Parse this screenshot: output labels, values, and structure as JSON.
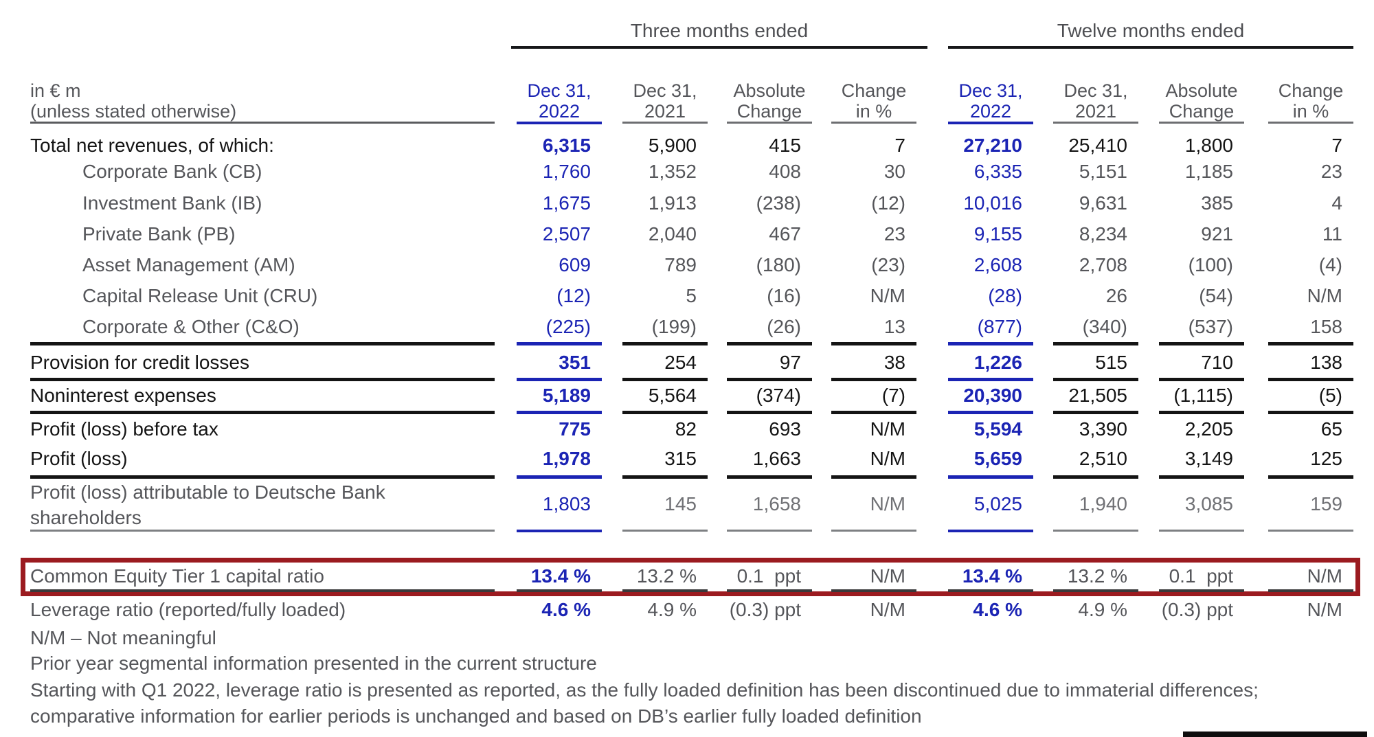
{
  "unit_label": {
    "line1": "in € m",
    "line2": "(unless stated otherwise)"
  },
  "groups": [
    {
      "title": "Three months ended",
      "columns": [
        {
          "line1": "Dec 31,",
          "line2": "2022"
        },
        {
          "line1": "Dec 31,",
          "line2": "2021"
        },
        {
          "line1": "Absolute",
          "line2": "Change"
        },
        {
          "line1": "Change",
          "line2": "in %"
        }
      ]
    },
    {
      "title": "Twelve months ended",
      "columns": [
        {
          "line1": "Dec 31,",
          "line2": "2022"
        },
        {
          "line1": "Dec 31,",
          "line2": "2021"
        },
        {
          "line1": "Absolute",
          "line2": "Change"
        },
        {
          "line1": "Change",
          "line2": "in %"
        }
      ]
    }
  ],
  "rows": [
    {
      "label": "Total net revenues, of which:",
      "style": "section",
      "values": [
        "6,315",
        "5,900",
        "415",
        "7",
        "27,210",
        "25,410",
        "1,800",
        "7"
      ]
    },
    {
      "label": "Corporate Bank (CB)",
      "style": "sub",
      "values": [
        "1,760",
        "1,352",
        "408",
        "30",
        "6,335",
        "5,151",
        "1,185",
        "23"
      ]
    },
    {
      "label": "Investment Bank (IB)",
      "style": "sub",
      "values": [
        "1,675",
        "1,913",
        "(238)",
        "(12)",
        "10,016",
        "9,631",
        "385",
        "4"
      ]
    },
    {
      "label": "Private Bank (PB)",
      "style": "sub",
      "values": [
        "2,507",
        "2,040",
        "467",
        "23",
        "9,155",
        "8,234",
        "921",
        "11"
      ]
    },
    {
      "label": "Asset Management (AM)",
      "style": "sub",
      "values": [
        "609",
        "789",
        "(180)",
        "(23)",
        "2,608",
        "2,708",
        "(100)",
        "(4)"
      ]
    },
    {
      "label": "Capital Release Unit (CRU)",
      "style": "sub",
      "values": [
        "(12)",
        "5",
        "(16)",
        "N/M",
        "(28)",
        "26",
        "(54)",
        "N/M"
      ]
    },
    {
      "label": "Corporate & Other (C&O)",
      "style": "sub",
      "values": [
        "(225)",
        "(199)",
        "(26)",
        "13",
        "(877)",
        "(340)",
        "(537)",
        "158"
      ]
    },
    {
      "label": "Provision for credit losses",
      "style": "section",
      "values": [
        "351",
        "254",
        "97",
        "38",
        "1,226",
        "515",
        "710",
        "138"
      ]
    },
    {
      "label": "Noninterest expenses",
      "style": "section",
      "values": [
        "5,189",
        "5,564",
        "(374)",
        "(7)",
        "20,390",
        "21,505",
        "(1,115)",
        "(5)"
      ]
    },
    {
      "label": "Profit (loss) before tax",
      "style": "section",
      "values": [
        "775",
        "82",
        "693",
        "N/M",
        "5,594",
        "3,390",
        "2,205",
        "65"
      ]
    },
    {
      "label": "Profit (loss)",
      "style": "section",
      "values": [
        "1,978",
        "315",
        "1,663",
        "N/M",
        "5,659",
        "2,510",
        "3,149",
        "125"
      ]
    },
    {
      "label": "Profit (loss) attributable to Deutsche Bank shareholders",
      "style": "muted",
      "values": [
        "1,803",
        "145",
        "1,658",
        "N/M",
        "5,025",
        "1,940",
        "3,085",
        "159"
      ]
    },
    {
      "label": "Common Equity Tier 1 capital ratio",
      "style": "ratio",
      "highlighted": true,
      "values": [
        "13.4 %",
        "13.2 %",
        "0.1  ppt",
        "N/M",
        "13.4 %",
        "13.2 %",
        "0.1  ppt",
        "N/M"
      ]
    },
    {
      "label": "Leverage ratio (reported/fully loaded)",
      "style": "ratio",
      "values": [
        "4.6 %",
        "4.9 %",
        "(0.3) ppt",
        "N/M",
        "4.6 %",
        "4.9 %",
        "(0.3) ppt",
        "N/M"
      ]
    }
  ],
  "footnotes": [
    "N/M – Not meaningful",
    "Prior year segmental information presented in the current structure",
    "Starting with Q1 2022, leverage ratio is presented as reported, as the fully loaded definition has been discontinued due to immaterial differences;",
    "comparative information for earlier periods is unchanged and based on DB’s earlier fully loaded definition"
  ],
  "colors": {
    "accent_blue": "#1b24b4",
    "text_dark": "#141414",
    "text_gray": "#55565a",
    "highlight_red": "#9b1b20"
  }
}
